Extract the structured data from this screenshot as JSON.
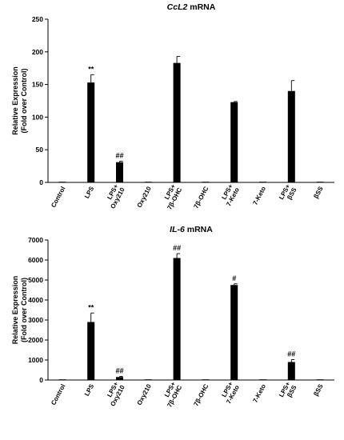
{
  "chart_data": [
    {
      "type": "bar",
      "title_gene": "CcL2",
      "title_rest": " mRNA",
      "ylabel": [
        "Relative Expression",
        "(Fold over Control)"
      ],
      "ylim": [
        0,
        250
      ],
      "yticks": [
        0,
        50,
        100,
        150,
        200,
        250
      ],
      "categories": [
        [
          "Control"
        ],
        [
          "LPS"
        ],
        [
          "LPS+",
          "Oxy210"
        ],
        [
          "Oxy210"
        ],
        [
          "LPS+",
          "7β-OHC"
        ],
        [
          "7β-OHC"
        ],
        [
          "LPS+",
          "7-Keto"
        ],
        [
          "7-Keto"
        ],
        [
          "LPS+",
          "βSS"
        ],
        [
          "βSS"
        ]
      ],
      "values": [
        1,
        153,
        31,
        1,
        183,
        1,
        123,
        1,
        140,
        1
      ],
      "errors": [
        0,
        12,
        1.5,
        0,
        10,
        0,
        1,
        0,
        16,
        0
      ],
      "annotations": [
        "",
        "**",
        "##",
        "",
        "",
        "",
        "",
        "",
        "",
        ""
      ],
      "grid": false
    },
    {
      "type": "bar",
      "title_gene": "IL-6",
      "title_rest": " mRNA",
      "ylabel": [
        "Relative Expression",
        "(Fold over Control)"
      ],
      "ylim": [
        0,
        7000
      ],
      "yticks": [
        0,
        1000,
        2000,
        3000,
        4000,
        5000,
        6000,
        7000
      ],
      "categories": [
        [
          "Control"
        ],
        [
          "LPS"
        ],
        [
          "LPS+",
          "Oxy210"
        ],
        [
          "Oxy210"
        ],
        [
          "LPS+",
          "7β-OHC"
        ],
        [
          "7β-OHC"
        ],
        [
          "LPS+",
          "7-Keto"
        ],
        [
          "7-Keto"
        ],
        [
          "LPS+",
          "βSS"
        ],
        [
          "βSS"
        ]
      ],
      "values": [
        5,
        2900,
        150,
        5,
        6100,
        5,
        4750,
        5,
        900,
        5
      ],
      "errors": [
        0,
        450,
        30,
        0,
        220,
        0,
        60,
        0,
        120,
        0
      ],
      "annotations": [
        "",
        "**",
        "##",
        "",
        "##",
        "",
        "#",
        "",
        "##",
        ""
      ],
      "grid": false
    }
  ]
}
